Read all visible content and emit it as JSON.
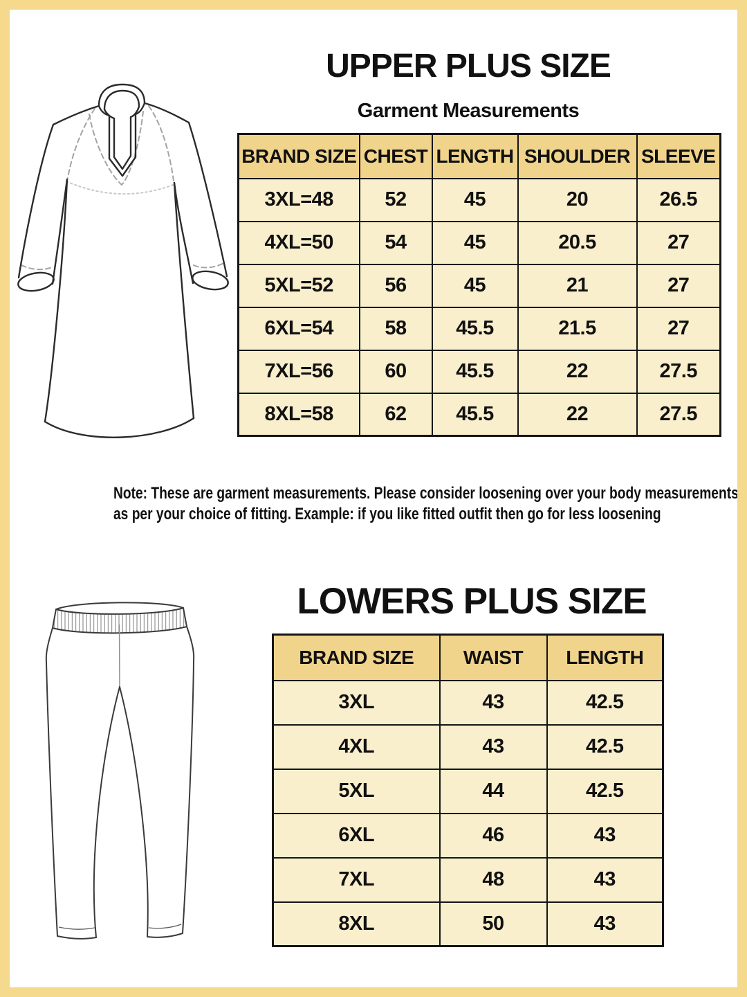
{
  "colors": {
    "frame": "#f5d98c",
    "header_bg": "#f1d48b",
    "cell_bg": "#faefcd",
    "border": "#151515",
    "text": "#111111"
  },
  "upper": {
    "title": "UPPER PLUS SIZE",
    "subtitle": "Garment Measurements",
    "table": {
      "headers": [
        "BRAND SIZE",
        "CHEST",
        "LENGTH",
        "SHOULDER",
        "SLEEVE"
      ],
      "rows": [
        [
          "3XL=48",
          "52",
          "45",
          "20",
          "26.5"
        ],
        [
          "4XL=50",
          "54",
          "45",
          "20.5",
          "27"
        ],
        [
          "5XL=52",
          "56",
          "45",
          "21",
          "27"
        ],
        [
          "6XL=54",
          "58",
          "45.5",
          "21.5",
          "27"
        ],
        [
          "7XL=56",
          "60",
          "45.5",
          "22",
          "27.5"
        ],
        [
          "8XL=58",
          "62",
          "45.5",
          "22",
          "27.5"
        ]
      ]
    },
    "note_line1": "Note: These are garment measurements. Please consider loosening over your body measurements",
    "note_line2": "as per your choice of fitting. Example: if you like fitted outfit then go for less loosening"
  },
  "lowers": {
    "title": "LOWERS PLUS SIZE",
    "table": {
      "headers": [
        "BRAND SIZE",
        "WAIST",
        "LENGTH"
      ],
      "rows": [
        [
          "3XL",
          "43",
          "42.5"
        ],
        [
          "4XL",
          "43",
          "42.5"
        ],
        [
          "5XL",
          "44",
          "42.5"
        ],
        [
          "6XL",
          "46",
          "43"
        ],
        [
          "7XL",
          "48",
          "43"
        ],
        [
          "8XL",
          "50",
          "43"
        ]
      ]
    }
  },
  "illustrations": {
    "kurta": "kurta-front-line-drawing",
    "pants": "leggings-front-line-drawing"
  }
}
